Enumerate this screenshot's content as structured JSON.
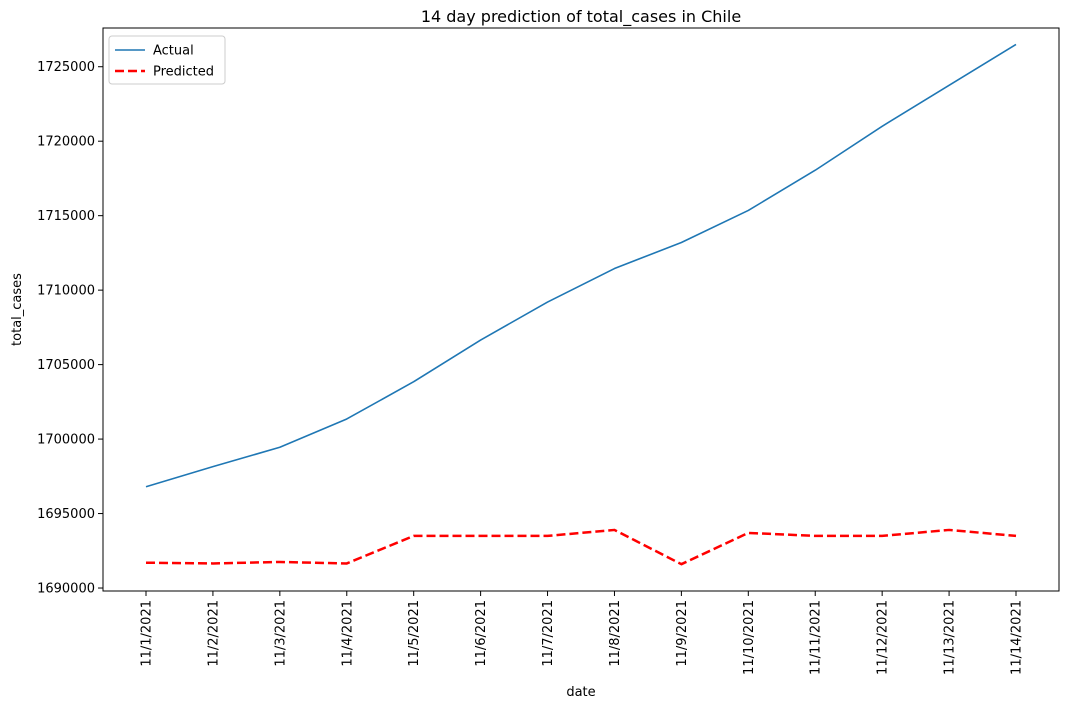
{
  "chart_data": {
    "type": "line",
    "title": "14 day prediction of total_cases in Chile",
    "xlabel": "date",
    "ylabel": "total_cases",
    "categories": [
      "11/1/2021",
      "11/2/2021",
      "11/3/2021",
      "11/4/2021",
      "11/5/2021",
      "11/6/2021",
      "11/7/2021",
      "11/8/2021",
      "11/9/2021",
      "11/10/2021",
      "11/11/2021",
      "11/12/2021",
      "11/13/2021",
      "11/14/2021"
    ],
    "yticks": [
      1690000,
      1695000,
      1700000,
      1705000,
      1710000,
      1715000,
      1720000,
      1725000
    ],
    "ylim": [
      1689800,
      1727600
    ],
    "grid": false,
    "legend_position": "top-left",
    "series": [
      {
        "name": "Actual",
        "color": "#1f77b4",
        "style": "solid",
        "values": [
          1696800,
          1698150,
          1699450,
          1701350,
          1703850,
          1706650,
          1709200,
          1711450,
          1713200,
          1715350,
          1718050,
          1721000,
          1723750,
          1726500
        ]
      },
      {
        "name": "Predicted",
        "color": "#ff0000",
        "style": "dashed",
        "values": [
          1691700,
          1691650,
          1691750,
          1691650,
          1693500,
          1693500,
          1693500,
          1693900,
          1691600,
          1693700,
          1693500,
          1693500,
          1693900,
          1693500
        ]
      }
    ]
  }
}
